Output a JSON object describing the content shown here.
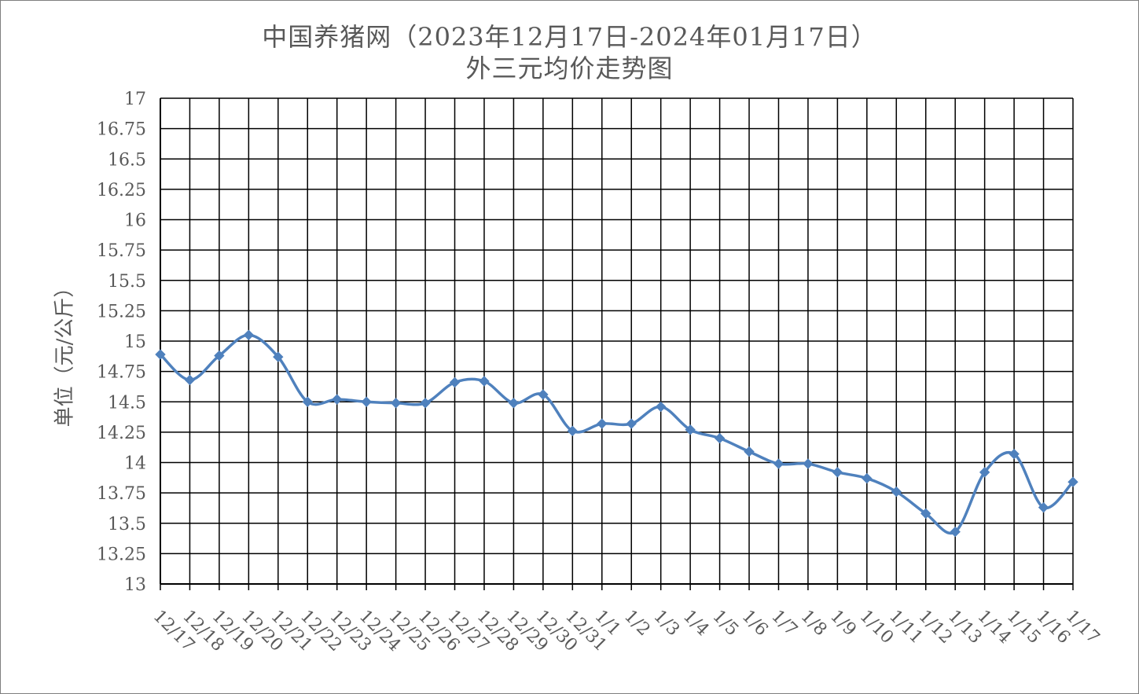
{
  "chart_data": {
    "type": "line",
    "title": "中国养猪网（2023年12月17日-2024年01月17日）",
    "subtitle": "外三元均价走势图",
    "xlabel": "",
    "ylabel": "单位（元/公斤）",
    "ylim": [
      13,
      17
    ],
    "y_ticks": [
      "13",
      "13.25",
      "13.5",
      "13.75",
      "14",
      "14.25",
      "14.5",
      "14.75",
      "15",
      "15.25",
      "15.5",
      "15.75",
      "16",
      "16.25",
      "16.5",
      "16.75",
      "17"
    ],
    "grid": true,
    "legend": "none",
    "categories": [
      "12/17",
      "12/18",
      "12/19",
      "12/20",
      "12/21",
      "12/22",
      "12/23",
      "12/24",
      "12/25",
      "12/26",
      "12/27",
      "12/28",
      "12/29",
      "12/30",
      "12/31",
      "1/1",
      "1/2",
      "1/3",
      "1/4",
      "1/5",
      "1/6",
      "1/7",
      "1/8",
      "1/9",
      "1/10",
      "1/11",
      "1/12",
      "1/13",
      "1/14",
      "1/15",
      "1/16",
      "1/17"
    ],
    "series": [
      {
        "values": [
          14.89,
          14.68,
          14.88,
          15.05,
          14.87,
          14.5,
          14.52,
          14.5,
          14.49,
          14.49,
          14.66,
          14.67,
          14.49,
          14.56,
          14.26,
          14.32,
          14.32,
          14.46,
          14.27,
          14.2,
          14.09,
          13.99,
          13.99,
          13.92,
          13.87,
          13.76,
          13.58,
          13.43,
          13.92,
          14.07,
          13.63,
          13.84
        ]
      }
    ],
    "line_color": "#4f81bd",
    "grid_color": "#000000"
  }
}
